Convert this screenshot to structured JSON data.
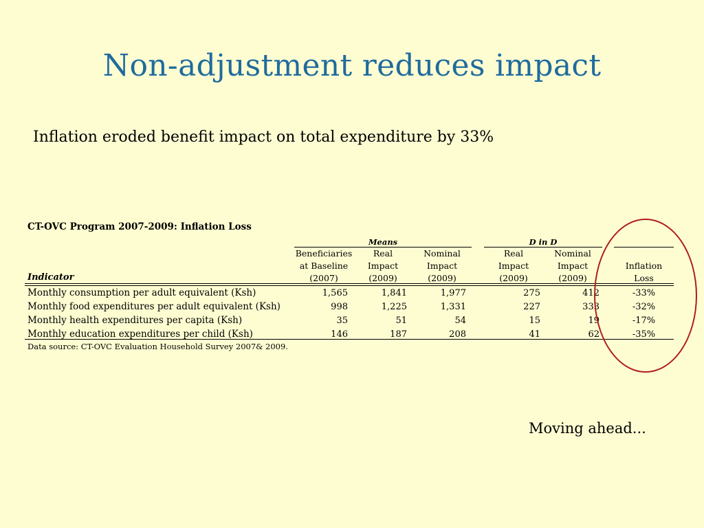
{
  "slide": {
    "title": "Non-adjustment reduces impact",
    "subtitle": "Inflation eroded benefit impact on total expenditure by 33%",
    "footer_note": "Moving ahead..."
  },
  "table": {
    "caption": "CT-OVC Program 2007-2009: Inflation Loss",
    "groups": [
      "Means",
      "D in D"
    ],
    "indicator_header": "Indicator",
    "columns": [
      {
        "l1": "Beneficiaries",
        "l2": "at Baseline",
        "l3": "(2007)"
      },
      {
        "l1": "Real",
        "l2": "Impact",
        "l3": "(2009)"
      },
      {
        "l1": "Nominal",
        "l2": "Impact",
        "l3": "(2009)"
      },
      {
        "l1": "Real",
        "l2": "Impact",
        "l3": "(2009)"
      },
      {
        "l1": "Nominal",
        "l2": "Impact",
        "l3": "(2009)"
      },
      {
        "l1": "",
        "l2": "Inflation",
        "l3": "Loss"
      }
    ],
    "rows": [
      {
        "label": "Monthly consumption per adult equivalent (Ksh)",
        "values": [
          "1,565",
          "1,841",
          "1,977",
          "275",
          "412",
          "-33%"
        ]
      },
      {
        "label": "Monthly food expenditures per adult equivalent (Ksh)",
        "values": [
          "998",
          "1,225",
          "1,331",
          "227",
          "333",
          "-32%"
        ]
      },
      {
        "label": "Monthly health expenditures per capita (Ksh)",
        "values": [
          "35",
          "51",
          "54",
          "15",
          "19",
          "-17%"
        ]
      },
      {
        "label": "Monthly education expenditures per child (Ksh)",
        "values": [
          "146",
          "187",
          "208",
          "41",
          "62",
          "-35%"
        ]
      }
    ],
    "source": "Data source: CT-OVC Evaluation Household Survey 2007& 2009."
  },
  "annotation": {
    "circle_color": "#b01c1c"
  }
}
